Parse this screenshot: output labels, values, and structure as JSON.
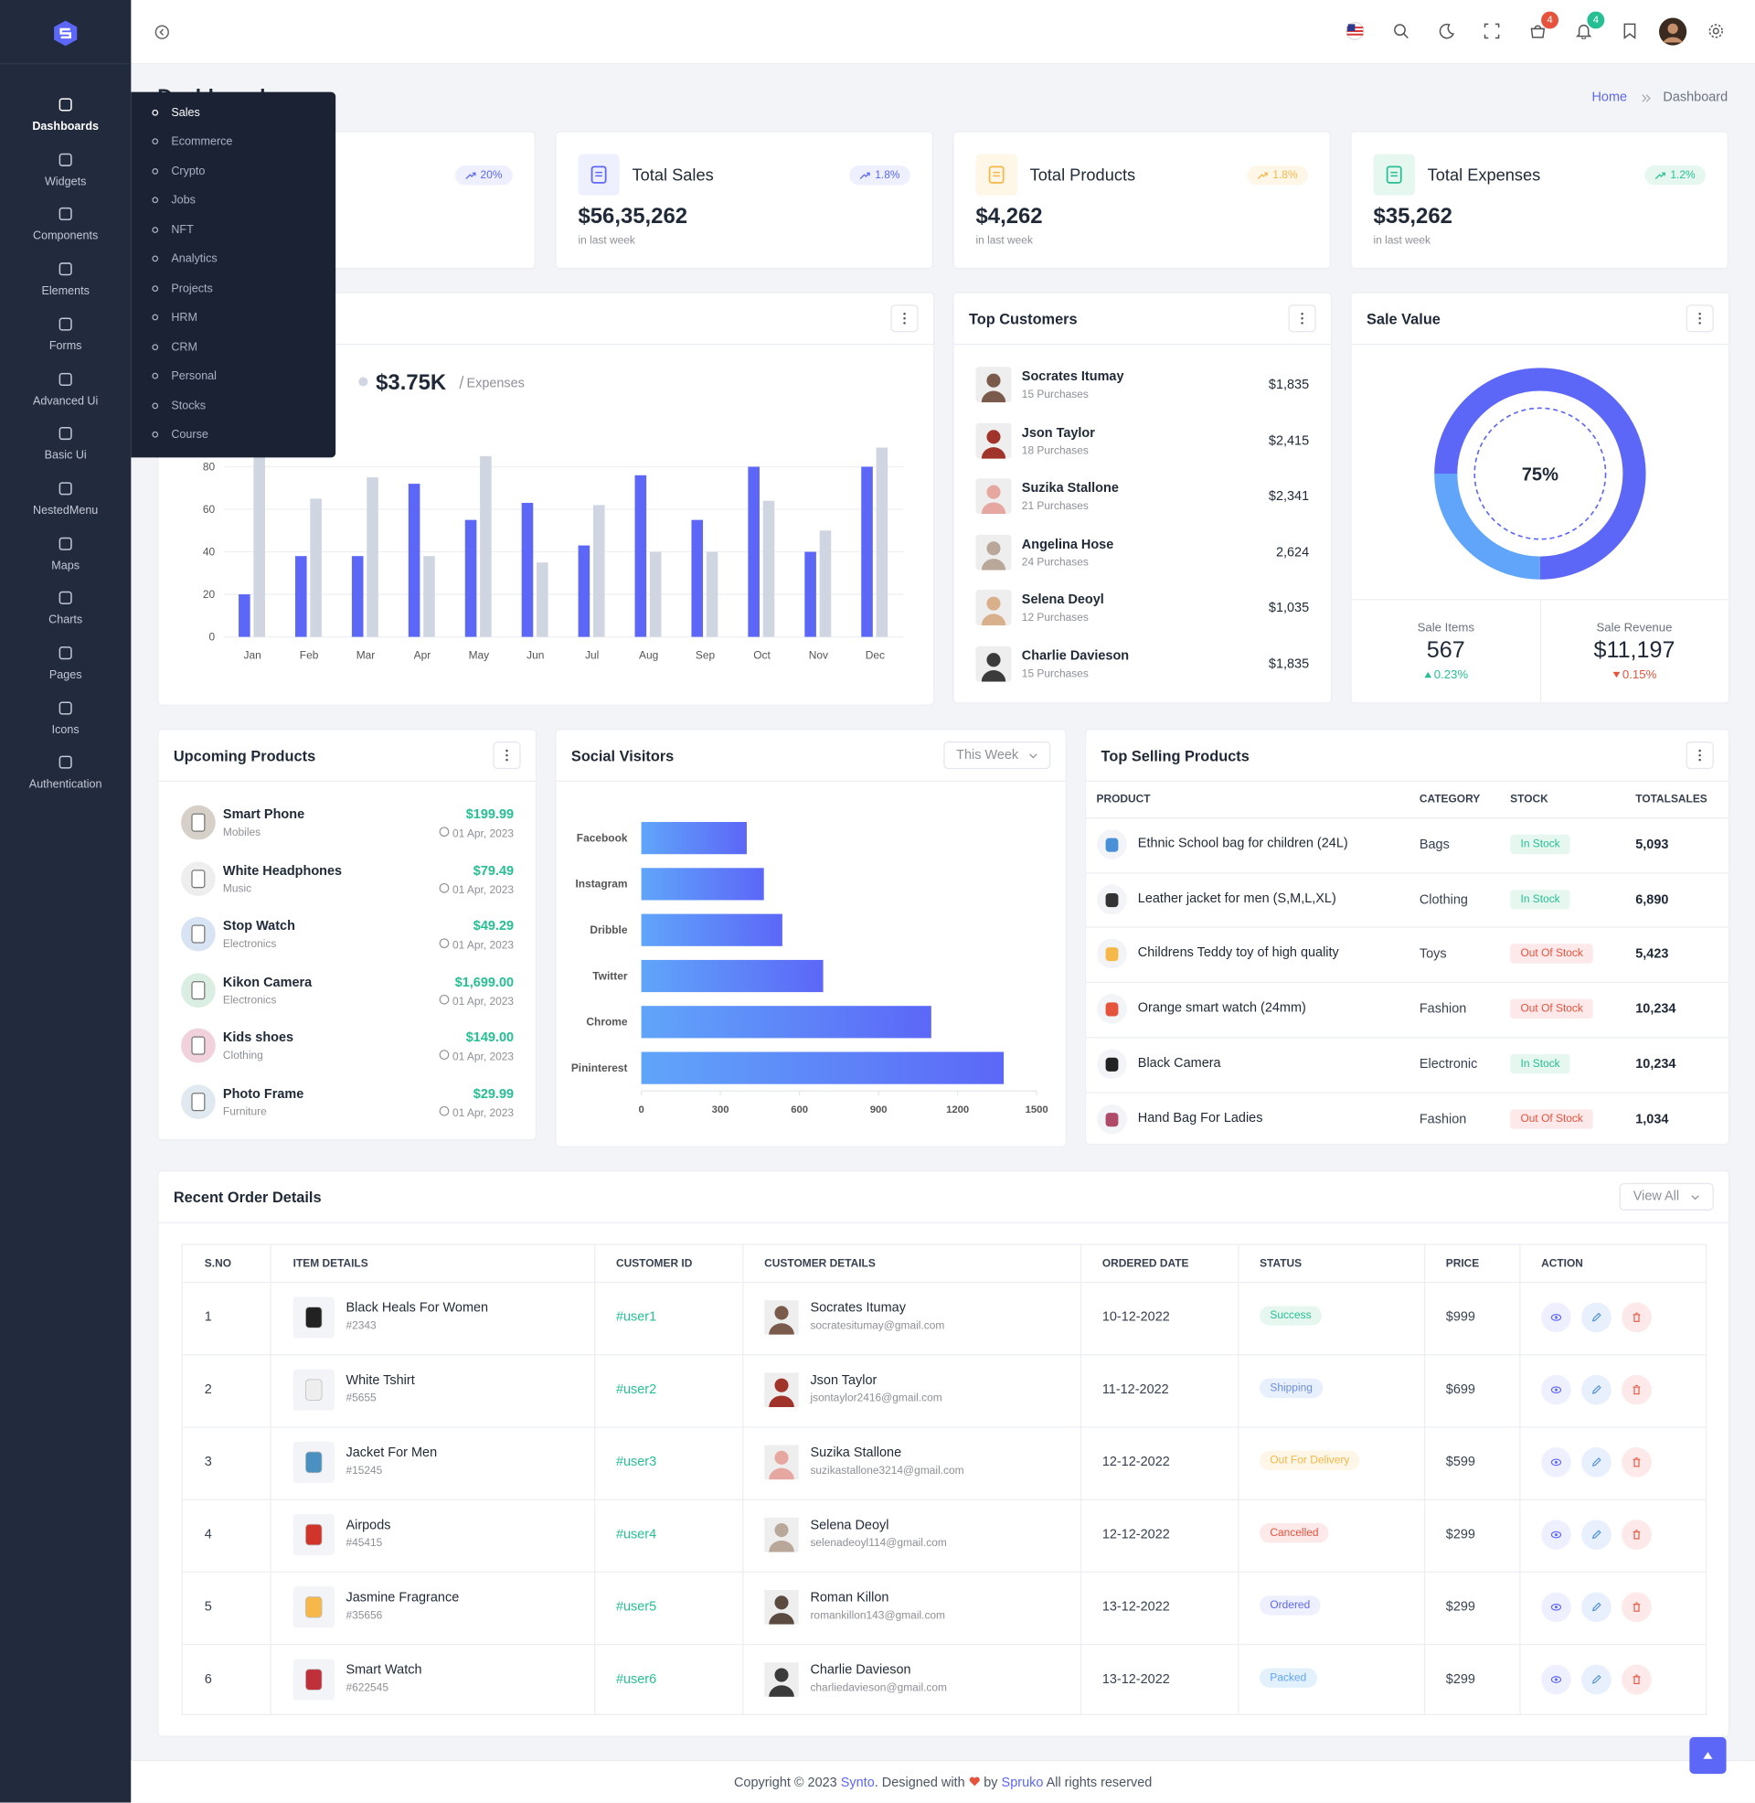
{
  "sidebar": {
    "menu": [
      "Dashboards",
      "Widgets",
      "Components",
      "Elements",
      "Forms",
      "Advanced Ui",
      "Basic Ui",
      "NestedMenu",
      "Maps",
      "Charts",
      "Pages",
      "Icons",
      "Authentication"
    ],
    "submenu": [
      "Sales",
      "Ecommerce",
      "Crypto",
      "Jobs",
      "NFT",
      "Analytics",
      "Projects",
      "HRM",
      "CRM",
      "Personal",
      "Stocks",
      "Course"
    ]
  },
  "header": {
    "cart_badge": 4,
    "notification_badge": 4
  },
  "page": {
    "title": "Dashboard",
    "breadcrumb": [
      "Home",
      "Dashboard"
    ]
  },
  "stats": [
    {
      "change": "20%"
    },
    {
      "title": "Total Sales",
      "value": "$56,35,262",
      "change": "1.8%",
      "note": "in last week"
    },
    {
      "title": "Total Products",
      "value": "$4,262",
      "change": "1.8%",
      "note": "in last week"
    },
    {
      "title": "Total Expenses",
      "value": "$35,262",
      "change": "1.2%",
      "note": "in last week"
    }
  ],
  "chart_data": [
    {
      "type": "bar",
      "legend_value": "$3.75K",
      "categories": [
        "Jan",
        "Feb",
        "Mar",
        "Apr",
        "May",
        "Jun",
        "Jul",
        "Aug",
        "Sep",
        "Oct",
        "Nov",
        "Dec"
      ],
      "series": [
        {
          "color": "#5c67f7",
          "values": [
            20,
            38,
            38,
            72,
            55,
            63,
            43,
            76,
            55,
            80,
            40,
            80
          ]
        },
        {
          "name": "Expenses",
          "color": "#cfd6e2",
          "values": [
            85,
            65,
            75,
            38,
            85,
            35,
            62,
            40,
            40,
            64,
            50,
            89
          ]
        }
      ],
      "ylim": [
        0,
        90
      ],
      "yticks": [
        0,
        20,
        40,
        60,
        80
      ],
      "grid": true
    },
    {
      "type": "pie",
      "title": "Sale Value",
      "center_label": "75%",
      "values": [
        75,
        25
      ],
      "colors": [
        "#5c67f7",
        "#60a5fa"
      ],
      "stats": [
        {
          "label": "Sale Items",
          "value": "567",
          "change": "0.23%",
          "direction": "up"
        },
        {
          "label": "Sale Revenue",
          "value": "$11,197",
          "change": "0.15%",
          "direction": "down"
        }
      ]
    },
    {
      "type": "hbar",
      "title": "Social Visitors",
      "filter": "This Week",
      "categories": [
        "Facebook",
        "Instagram",
        "Dribble",
        "Twitter",
        "Chrome",
        "Pininterest"
      ],
      "values": [
        400,
        465,
        535,
        690,
        1100,
        1375
      ],
      "color": "#5c67f7",
      "xlim": [
        0,
        1500
      ],
      "xticks": [
        0,
        300,
        600,
        900,
        1200,
        1500
      ]
    }
  ],
  "top_customers": {
    "title": "Top Customers",
    "items": [
      {
        "name": "Socrates Itumay",
        "purchases": "15 Purchases",
        "amount": "$1,835"
      },
      {
        "name": "Json Taylor",
        "purchases": "18 Purchases",
        "amount": "$2,415"
      },
      {
        "name": "Suzika Stallone",
        "purchases": "21 Purchases",
        "amount": "$2,341"
      },
      {
        "name": "Angelina Hose",
        "purchases": "24 Purchases",
        "amount": "2,624"
      },
      {
        "name": "Selena Deoyl",
        "purchases": "12 Purchases",
        "amount": "$1,035"
      },
      {
        "name": "Charlie Davieson",
        "purchases": "15 Purchases",
        "amount": "$1,835"
      }
    ]
  },
  "upcoming_products": {
    "title": "Upcoming Products",
    "items": [
      {
        "name": "Smart Phone",
        "category": "Mobiles",
        "price": "$199.99",
        "date": "01 Apr, 2023"
      },
      {
        "name": "White Headphones",
        "category": "Music",
        "price": "$79.49",
        "date": "01 Apr, 2023"
      },
      {
        "name": "Stop Watch",
        "category": "Electronics",
        "price": "$49.29",
        "date": "01 Apr, 2023"
      },
      {
        "name": "Kikon Camera",
        "category": "Electronics",
        "price": "$1,699.00",
        "date": "01 Apr, 2023"
      },
      {
        "name": "Kids shoes",
        "category": "Clothing",
        "price": "$149.00",
        "date": "01 Apr, 2023"
      },
      {
        "name": "Photo Frame",
        "category": "Furniture",
        "price": "$29.99",
        "date": "01 Apr, 2023"
      }
    ]
  },
  "top_selling": {
    "title": "Top Selling Products",
    "columns": [
      "PRODUCT",
      "CATEGORY",
      "STOCK",
      "TOTALSALES"
    ],
    "rows": [
      [
        "Ethnic School bag for children (24L)",
        "Bags",
        "In Stock",
        "5,093"
      ],
      [
        "Leather jacket for men (S,M,L,XL)",
        "Clothing",
        "In Stock",
        "6,890"
      ],
      [
        "Childrens Teddy toy of high quality",
        "Toys",
        "Out Of Stock",
        "5,423"
      ],
      [
        "Orange smart watch (24mm)",
        "Fashion",
        "Out Of Stock",
        "10,234"
      ],
      [
        "Black Camera",
        "Electronic",
        "In Stock",
        "10,234"
      ],
      [
        "Hand Bag For Ladies",
        "Fashion",
        "Out Of Stock",
        "1,034"
      ]
    ]
  },
  "recent_orders": {
    "title": "Recent Order Details",
    "button": "View All",
    "columns": [
      "S.NO",
      "ITEM DETAILS",
      "CUSTOMER ID",
      "CUSTOMER DETAILS",
      "ORDERED DATE",
      "STATUS",
      "PRICE",
      "ACTION"
    ],
    "rows": [
      {
        "no": "1",
        "item": "Black Heals For Women",
        "item_id": "#2343",
        "customer_id": "#user1",
        "customer": "Socrates Itumay",
        "email": "socratesitumay@gmail.com",
        "date": "10-12-2022",
        "status": "Success",
        "price": "$999"
      },
      {
        "no": "2",
        "item": "White Tshirt",
        "item_id": "#5655",
        "customer_id": "#user2",
        "customer": "Json Taylor",
        "email": "jsontaylor2416@gmail.com",
        "date": "11-12-2022",
        "status": "Shipping",
        "price": "$699"
      },
      {
        "no": "3",
        "item": "Jacket For Men",
        "item_id": "#15245",
        "customer_id": "#user3",
        "customer": "Suzika Stallone",
        "email": "suzikastallone3214@gmail.com",
        "date": "12-12-2022",
        "status": "Out For Delivery",
        "price": "$599"
      },
      {
        "no": "4",
        "item": "Airpods",
        "item_id": "#45415",
        "customer_id": "#user4",
        "customer": "Selena Deoyl",
        "email": "selenadeoyl114@gmail.com",
        "date": "12-12-2022",
        "status": "Cancelled",
        "price": "$299"
      },
      {
        "no": "5",
        "item": "Jasmine Fragrance",
        "item_id": "#35656",
        "customer_id": "#user5",
        "customer": "Roman Killon",
        "email": "romankillon143@gmail.com",
        "date": "13-12-2022",
        "status": "Ordered",
        "price": "$299"
      },
      {
        "no": "6",
        "item": "Smart Watch",
        "item_id": "#622545",
        "customer_id": "#user6",
        "customer": "Charlie Davieson",
        "email": "charliedavieson@gmail.com",
        "date": "13-12-2022",
        "status": "Packed",
        "price": "$299"
      }
    ]
  },
  "footer": {
    "copyright": "Copyright © 2023",
    "brand": "Synto",
    "designed": ". Designed with",
    "by": "by",
    "author": "Spruko",
    "rights": "All rights reserved"
  }
}
